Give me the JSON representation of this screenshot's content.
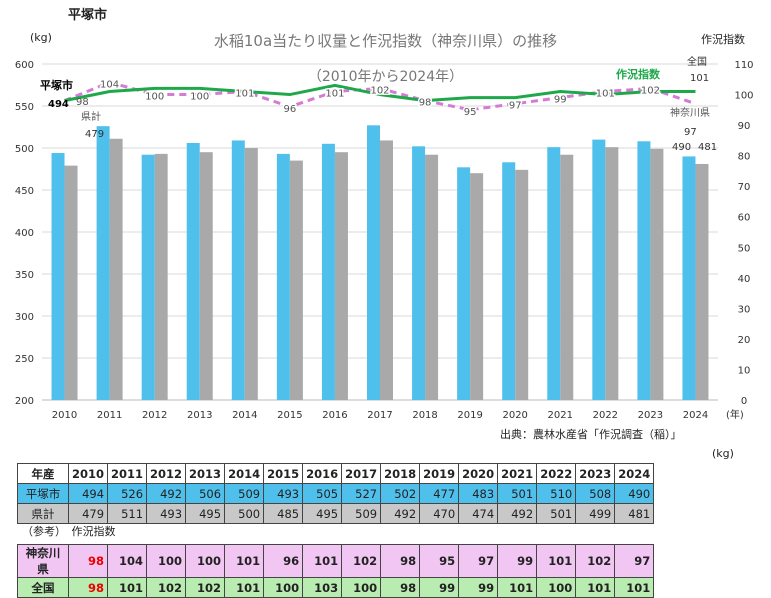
{
  "city_title": "平塚市",
  "chart_data": {
    "type": "bar",
    "title": "水稲10a当たり収量と作況指数（神奈川県）の推移",
    "subtitle": "（2010年から2024年）",
    "ylabel_left": "(kg)",
    "ylabel_right": "作況指数",
    "xunit": "(年)",
    "ylim": [
      200,
      600
    ],
    "ylim_right": [
      0,
      110
    ],
    "yticks": [
      200,
      250,
      300,
      350,
      400,
      450,
      500,
      550,
      600
    ],
    "yticks_right": [
      0,
      10,
      20,
      30,
      40,
      50,
      60,
      70,
      80,
      90,
      100,
      110
    ],
    "categories": [
      "2010",
      "2011",
      "2012",
      "2013",
      "2014",
      "2015",
      "2016",
      "2017",
      "2018",
      "2019",
      "2020",
      "2021",
      "2022",
      "2023",
      "2024"
    ],
    "series": [
      {
        "name": "平塚市",
        "kind": "bar",
        "color": "#4fc0ec",
        "values": [
          494,
          526,
          492,
          506,
          509,
          493,
          505,
          527,
          502,
          477,
          483,
          501,
          510,
          508,
          490
        ]
      },
      {
        "name": "県計",
        "kind": "bar",
        "color": "#a9a9a9",
        "values": [
          479,
          511,
          493,
          495,
          500,
          485,
          495,
          509,
          492,
          470,
          474,
          492,
          501,
          499,
          481
        ]
      },
      {
        "name": "神奈川県",
        "kind": "line",
        "axis": "right",
        "color": "#d57ad5",
        "dashed": true,
        "values": [
          98,
          104,
          100,
          100,
          101,
          96,
          101,
          102,
          98,
          95,
          97,
          99,
          101,
          102,
          97
        ]
      },
      {
        "name": "全国",
        "kind": "line",
        "axis": "right",
        "color": "#1ea84a",
        "dashed": false,
        "values": [
          98,
          101,
          102,
          102,
          101,
          100,
          103,
          100,
          98,
          99,
          99,
          101,
          100,
          101,
          101
        ]
      }
    ],
    "legend_line": "作況指数",
    "ann_city": "平塚市",
    "ann_pref": "県計",
    "ann_national": "全国",
    "ann_kanagawa": "神奈川県",
    "first_city_value": "494",
    "first_pref_value": "479",
    "first_kanagawa_value": "98",
    "last_city_value": "490",
    "last_pref_value": "481",
    "last_kanagawa_value": "97",
    "last_national_value": "101"
  },
  "source": "出典：農林水産省「作況調査（稲）」",
  "unit": "(kg)",
  "table": {
    "header_label": "年産",
    "rows": [
      {
        "label": "平塚市",
        "values": [
          "494",
          "526",
          "492",
          "506",
          "509",
          "493",
          "505",
          "527",
          "502",
          "477",
          "483",
          "501",
          "510",
          "508",
          "490"
        ]
      },
      {
        "label": "県計",
        "values": [
          "479",
          "511",
          "493",
          "495",
          "500",
          "485",
          "495",
          "509",
          "492",
          "470",
          "474",
          "492",
          "501",
          "499",
          "481"
        ]
      }
    ],
    "ref_note": "（参考）　作況指数",
    "index_rows": [
      {
        "label": "神奈川県",
        "values": [
          "98",
          "104",
          "100",
          "100",
          "101",
          "96",
          "101",
          "102",
          "98",
          "95",
          "97",
          "99",
          "101",
          "102",
          "97"
        ]
      },
      {
        "label": "全国",
        "values": [
          "98",
          "101",
          "102",
          "102",
          "101",
          "100",
          "103",
          "100",
          "98",
          "99",
          "99",
          "101",
          "100",
          "101",
          "101"
        ]
      }
    ]
  }
}
